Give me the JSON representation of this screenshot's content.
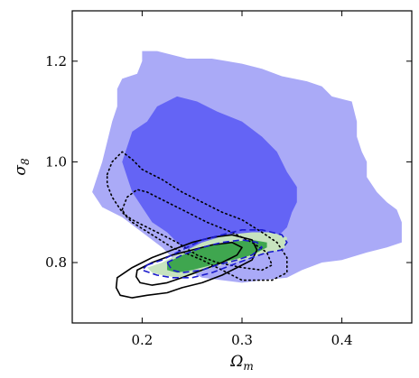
{
  "chart_data": {
    "type": "contour",
    "title": "",
    "xlabel": "Ω",
    "xlabel_sub": "m",
    "ylabel": "σ",
    "ylabel_sub": "8",
    "xlim": [
      0.13,
      0.47
    ],
    "ylim": [
      0.68,
      1.3
    ],
    "xticks": [
      0.2,
      0.3,
      0.4
    ],
    "yticks": [
      0.8,
      1.0,
      1.2
    ],
    "xtick_labels": [
      "0.2",
      "0.3",
      "0.4"
    ],
    "ytick_labels": [
      "0.8",
      "1.0",
      "1.2"
    ],
    "grid": false,
    "legend": "none",
    "colors": {
      "blue_outer": "#aaaaf7",
      "blue_inner": "#6464f5",
      "green_outer": "#c7e3bf",
      "green_inner": "#3fa64f",
      "dashed": "#1a1acc",
      "dotted": "#000000",
      "solid": "#000000"
    },
    "series": [
      {
        "style": "filled",
        "level": "outer",
        "color_key": "blue_outer",
        "x": [
          0.15,
          0.155,
          0.16,
          0.165,
          0.17,
          0.175,
          0.175,
          0.18,
          0.195,
          0.2,
          0.2,
          0.215,
          0.245,
          0.27,
          0.3,
          0.32,
          0.34,
          0.365,
          0.38,
          0.39,
          0.41,
          0.415,
          0.415,
          0.42,
          0.425,
          0.425,
          0.435,
          0.445,
          0.455,
          0.46,
          0.46,
          0.445,
          0.425,
          0.4,
          0.38,
          0.36,
          0.345,
          0.32,
          0.3,
          0.28,
          0.26,
          0.24,
          0.22,
          0.2,
          0.18,
          0.16
        ],
        "y": [
          0.94,
          0.97,
          1.0,
          1.04,
          1.08,
          1.11,
          1.145,
          1.165,
          1.175,
          1.2,
          1.22,
          1.22,
          1.205,
          1.205,
          1.195,
          1.185,
          1.17,
          1.16,
          1.15,
          1.13,
          1.12,
          1.08,
          1.05,
          1.02,
          1.0,
          0.97,
          0.94,
          0.92,
          0.905,
          0.88,
          0.84,
          0.83,
          0.82,
          0.805,
          0.8,
          0.785,
          0.77,
          0.765,
          0.76,
          0.765,
          0.77,
          0.79,
          0.83,
          0.86,
          0.89,
          0.91
        ]
      },
      {
        "style": "filled",
        "level": "inner",
        "color_key": "blue_inner",
        "x": [
          0.18,
          0.185,
          0.19,
          0.205,
          0.215,
          0.235,
          0.255,
          0.275,
          0.3,
          0.32,
          0.335,
          0.345,
          0.355,
          0.355,
          0.35,
          0.345,
          0.335,
          0.32,
          0.3,
          0.28,
          0.26,
          0.24,
          0.225,
          0.21,
          0.2,
          0.19,
          0.185
        ],
        "y": [
          1.0,
          1.03,
          1.06,
          1.08,
          1.11,
          1.13,
          1.12,
          1.1,
          1.08,
          1.05,
          1.02,
          0.98,
          0.95,
          0.92,
          0.9,
          0.87,
          0.85,
          0.83,
          0.82,
          0.815,
          0.82,
          0.83,
          0.86,
          0.88,
          0.91,
          0.94,
          0.97
        ]
      },
      {
        "style": "filled",
        "level": "outer",
        "color_key": "green_outer",
        "x": [
          0.205,
          0.22,
          0.24,
          0.26,
          0.285,
          0.31,
          0.33,
          0.345,
          0.345,
          0.34,
          0.325,
          0.31,
          0.29,
          0.27,
          0.25,
          0.235,
          0.22,
          0.21
        ],
        "y": [
          0.79,
          0.8,
          0.82,
          0.84,
          0.855,
          0.86,
          0.86,
          0.85,
          0.835,
          0.825,
          0.82,
          0.81,
          0.8,
          0.79,
          0.775,
          0.77,
          0.775,
          0.78
        ]
      },
      {
        "style": "filled",
        "level": "inner",
        "color_key": "green_inner",
        "x": [
          0.225,
          0.24,
          0.26,
          0.285,
          0.31,
          0.325,
          0.325,
          0.31,
          0.29,
          0.27,
          0.25,
          0.235,
          0.225
        ],
        "y": [
          0.8,
          0.815,
          0.83,
          0.84,
          0.845,
          0.84,
          0.83,
          0.815,
          0.805,
          0.795,
          0.785,
          0.78,
          0.785
        ]
      },
      {
        "style": "dashed",
        "level": "outer",
        "color_key": "dashed",
        "x": [
          0.205,
          0.22,
          0.24,
          0.26,
          0.28,
          0.3,
          0.32,
          0.34,
          0.345,
          0.34,
          0.325,
          0.31,
          0.29,
          0.27,
          0.25,
          0.23,
          0.215,
          0.2
        ],
        "y": [
          0.795,
          0.805,
          0.825,
          0.845,
          0.855,
          0.865,
          0.865,
          0.855,
          0.84,
          0.825,
          0.82,
          0.81,
          0.795,
          0.78,
          0.77,
          0.77,
          0.775,
          0.785
        ]
      },
      {
        "style": "dashed",
        "level": "inner",
        "color_key": "dashed",
        "x": [
          0.225,
          0.24,
          0.26,
          0.28,
          0.3,
          0.315,
          0.32,
          0.31,
          0.295,
          0.275,
          0.26,
          0.24,
          0.23
        ],
        "y": [
          0.8,
          0.815,
          0.83,
          0.84,
          0.845,
          0.84,
          0.83,
          0.815,
          0.805,
          0.795,
          0.785,
          0.78,
          0.785
        ]
      },
      {
        "style": "dotted",
        "level": "outer",
        "color_key": "dotted",
        "x": [
          0.165,
          0.17,
          0.18,
          0.19,
          0.2,
          0.22,
          0.24,
          0.26,
          0.28,
          0.3,
          0.32,
          0.335,
          0.345,
          0.345,
          0.33,
          0.3,
          0.28,
          0.26,
          0.23,
          0.21,
          0.19,
          0.18,
          0.17,
          0.165
        ],
        "y": [
          0.975,
          1.0,
          1.02,
          1.005,
          0.985,
          0.965,
          0.94,
          0.92,
          0.9,
          0.885,
          0.86,
          0.84,
          0.81,
          0.78,
          0.765,
          0.765,
          0.785,
          0.805,
          0.83,
          0.855,
          0.88,
          0.9,
          0.93,
          0.955
        ]
      },
      {
        "style": "dotted",
        "level": "inner",
        "color_key": "dotted",
        "x": [
          0.18,
          0.185,
          0.195,
          0.205,
          0.225,
          0.245,
          0.265,
          0.29,
          0.31,
          0.325,
          0.33,
          0.32,
          0.3,
          0.275,
          0.255,
          0.235,
          0.215,
          0.2,
          0.19,
          0.183
        ],
        "y": [
          0.905,
          0.93,
          0.945,
          0.94,
          0.92,
          0.9,
          0.88,
          0.86,
          0.84,
          0.82,
          0.795,
          0.785,
          0.79,
          0.8,
          0.815,
          0.84,
          0.86,
          0.875,
          0.885,
          0.895
        ]
      },
      {
        "style": "solid",
        "level": "outer",
        "color_key": "solid",
        "x": [
          0.175,
          0.19,
          0.21,
          0.23,
          0.25,
          0.27,
          0.29,
          0.31,
          0.315,
          0.31,
          0.295,
          0.28,
          0.26,
          0.24,
          0.225,
          0.205,
          0.19,
          0.178,
          0.174
        ],
        "y": [
          0.77,
          0.79,
          0.81,
          0.825,
          0.84,
          0.85,
          0.855,
          0.845,
          0.825,
          0.805,
          0.79,
          0.775,
          0.76,
          0.75,
          0.74,
          0.735,
          0.73,
          0.735,
          0.75
        ]
      },
      {
        "style": "solid",
        "level": "inner",
        "color_key": "solid",
        "x": [
          0.195,
          0.21,
          0.23,
          0.25,
          0.27,
          0.29,
          0.3,
          0.295,
          0.28,
          0.26,
          0.24,
          0.225,
          0.21,
          0.198,
          0.194
        ],
        "y": [
          0.785,
          0.8,
          0.815,
          0.825,
          0.835,
          0.84,
          0.83,
          0.815,
          0.8,
          0.785,
          0.77,
          0.76,
          0.755,
          0.76,
          0.772
        ]
      }
    ]
  }
}
